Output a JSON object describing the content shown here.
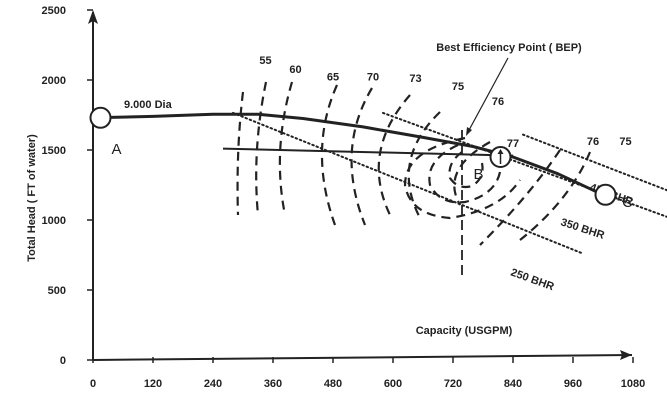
{
  "chart_data": {
    "type": "line",
    "xlabel": "Capacity (USGPM)",
    "ylabel": "Total Head ( FT of water)",
    "xlim": [
      0,
      1140
    ],
    "ylim": [
      0,
      2500
    ],
    "x_ticks": [
      "0",
      "120",
      "240",
      "360",
      "480",
      "600",
      "720",
      "840",
      "960",
      "1080"
    ],
    "y_ticks": [
      "0",
      "500",
      "1000",
      "1500",
      "2000",
      "2500"
    ],
    "grid": false,
    "series": [
      {
        "name": "9.000 Dia",
        "kind": "pump-curve",
        "x": [
          0,
          120,
          240,
          330,
          420,
          540,
          660,
          760,
          840,
          930,
          1020
        ],
        "y": [
          1730,
          1740,
          1755,
          1755,
          1725,
          1665,
          1590,
          1525,
          1450,
          1330,
          1180
        ]
      },
      {
        "name": "system-line",
        "kind": "system-curve",
        "x": [
          260,
          840
        ],
        "y": [
          1510,
          1460
        ]
      }
    ],
    "efficiency_labels": [
      {
        "text": "55",
        "x": 345,
        "y": 2115
      },
      {
        "text": "60",
        "x": 405,
        "y": 2050
      },
      {
        "text": "65",
        "x": 480,
        "y": 1995
      },
      {
        "text": "70",
        "x": 560,
        "y": 1995
      },
      {
        "text": "73",
        "x": 645,
        "y": 1985
      },
      {
        "text": "75",
        "x": 730,
        "y": 1930
      },
      {
        "text": "76",
        "x": 810,
        "y": 1820
      },
      {
        "text": "76",
        "x": 1000,
        "y": 1535
      },
      {
        "text": "75",
        "x": 1065,
        "y": 1535
      },
      {
        "text": "77",
        "x": 840,
        "y": 1520
      }
    ],
    "power_lines": [
      {
        "label": "450 BHR",
        "x": [
          860,
          1150
        ],
        "y": [
          1610,
          1210
        ]
      },
      {
        "label": "350 BHR",
        "x": [
          580,
          1150
        ],
        "y": [
          1765,
          1020
        ]
      },
      {
        "label": "250 BHR",
        "x": [
          280,
          980
        ],
        "y": [
          1765,
          760
        ]
      }
    ],
    "points": [
      {
        "label": "A",
        "x": 15,
        "y": 1730
      },
      {
        "label": "B",
        "x": 815,
        "y": 1450
      },
      {
        "label": "C",
        "x": 1025,
        "y": 1180
      }
    ],
    "annotations": {
      "bep": "Best Efficiency  Point ( BEP)",
      "curve_label": "9.000 Dia",
      "bhr_450": "450 BHR",
      "bhr_350": "350 BHR",
      "bhr_250": "250 BHR"
    }
  }
}
